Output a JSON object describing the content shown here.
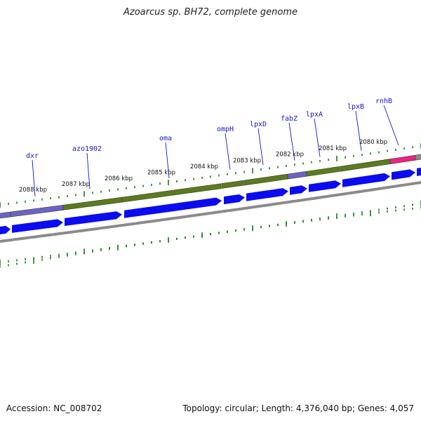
{
  "header": {
    "title": "Azoarcus sp. BH72, complete genome"
  },
  "footer": {
    "accession": "Accession: NC_008702",
    "summary": "Topology: circular; Length: 4,376,040 bp; Genes: 4,057"
  },
  "colors": {
    "forward_gene": "#0b0bf0",
    "cds_green": "#5c7a22",
    "cds_purple": "#6e62c8",
    "rna_pink": "#f0208a",
    "backbone": "#8a8a8a",
    "tick": "#1a7a1a",
    "label": "#1515cc"
  },
  "ticks": [
    {
      "label": "2088 kbp"
    },
    {
      "label": "2087 kbp"
    },
    {
      "label": "2086 kbp"
    },
    {
      "label": "2085 kbp"
    },
    {
      "label": "2084 kbp"
    },
    {
      "label": "2083 kbp"
    },
    {
      "label": "2082 kbp"
    },
    {
      "label": "2081 kbp"
    },
    {
      "label": "2080 kbp"
    }
  ],
  "genes": [
    {
      "label": "dxr"
    },
    {
      "label": "azo1902"
    },
    {
      "label": "oma"
    },
    {
      "label": "ompH"
    },
    {
      "label": "lpxD"
    },
    {
      "label": "fabZ"
    },
    {
      "label": "lpxA"
    },
    {
      "label": "lpxB"
    },
    {
      "label": "rnhB"
    }
  ]
}
